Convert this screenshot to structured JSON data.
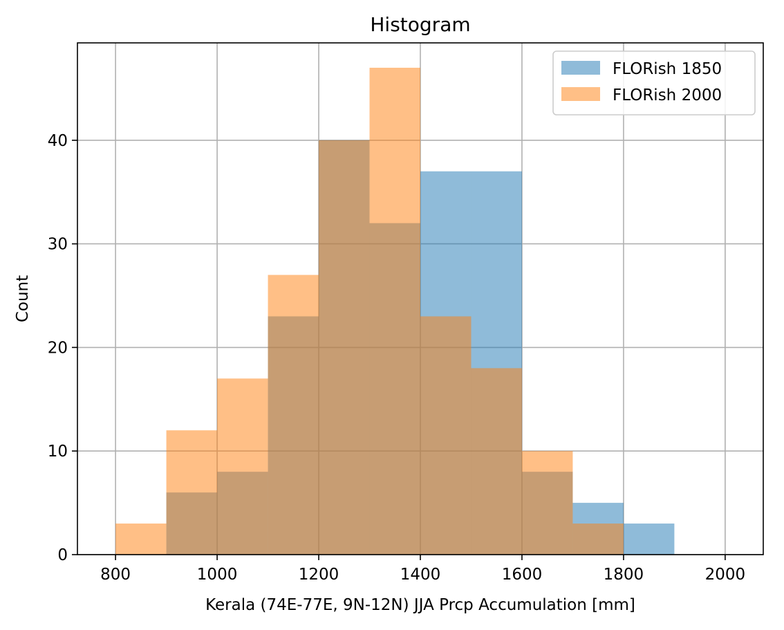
{
  "chart_data": {
    "type": "bar",
    "title": "Histogram",
    "xlabel": "Kerala (74E-77E, 9N-12N) JJA Prcp Accumulation [mm]",
    "ylabel": "Count",
    "xlim": [
      725,
      2075
    ],
    "ylim": [
      0,
      49.4
    ],
    "xticks": [
      800,
      1000,
      1200,
      1400,
      1600,
      1800,
      2000
    ],
    "yticks": [
      0,
      10,
      20,
      30,
      40
    ],
    "grid": true,
    "legend_position": "top-right",
    "bin_edges": [
      800,
      900,
      1000,
      1100,
      1200,
      1300,
      1400,
      1500,
      1600,
      1700,
      1800,
      1900,
      2000
    ],
    "series": [
      {
        "name": "FLORish 1850",
        "color": "#1f77b4",
        "opacity": 0.5,
        "values": [
          0,
          6,
          8,
          23,
          40,
          32,
          37,
          37,
          8,
          5,
          3,
          0
        ]
      },
      {
        "name": "FLORish 2000",
        "color": "#ff7f0e",
        "opacity": 0.5,
        "values": [
          3,
          12,
          17,
          27,
          40,
          47,
          23,
          18,
          10,
          3,
          0,
          0
        ]
      }
    ]
  }
}
